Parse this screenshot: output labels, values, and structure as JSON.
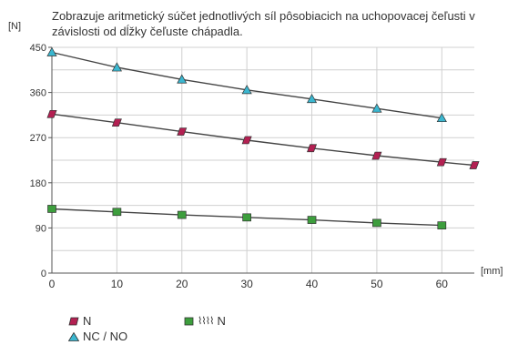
{
  "description": "Zobrazuje aritmetický súčet jednotlivých síl pôsobiacich na uchopovacej čeľusti v závislosti od dĺžky čeľuste chápadla.",
  "colors": {
    "grid": "#d0d0d0",
    "axis": "#555555",
    "curve": "#444444",
    "series_n": "#b32052",
    "series_ncno": "#3bb7d0",
    "series_spring": "#3d9e3d",
    "marker_stroke": "#333333"
  },
  "chart_data": {
    "type": "line",
    "ylabel": "[N]",
    "xlabel": "[mm]",
    "xlim": [
      0,
      65
    ],
    "ylim": [
      0,
      450
    ],
    "x_ticks": [
      0,
      10,
      20,
      30,
      40,
      50,
      60
    ],
    "y_ticks": [
      0,
      90,
      180,
      270,
      360,
      450
    ],
    "grid": true,
    "legend_position": "bottom-left",
    "series": [
      {
        "name": "NC / NO",
        "marker": "triangle",
        "x": [
          0,
          10,
          20,
          30,
          40,
          50,
          60
        ],
        "y": [
          440,
          410,
          386,
          365,
          347,
          328,
          309
        ]
      },
      {
        "name": "N",
        "marker": "parallelogram",
        "x": [
          0,
          10,
          20,
          30,
          40,
          50,
          60,
          65
        ],
        "y": [
          317,
          300,
          282,
          265,
          249,
          234,
          221,
          215
        ]
      },
      {
        "name": "N",
        "marker": "square",
        "legend_prefix_icon": "spring-icon",
        "x": [
          0,
          10,
          20,
          30,
          40,
          50,
          60
        ],
        "y": [
          128,
          122,
          116,
          111,
          106,
          100,
          95
        ]
      }
    ]
  },
  "legend": {
    "n_label": "N",
    "ncno_label": "NC / NO",
    "spring_label": "N",
    "spring_symbol": "⌇⌇⌇⌇"
  }
}
